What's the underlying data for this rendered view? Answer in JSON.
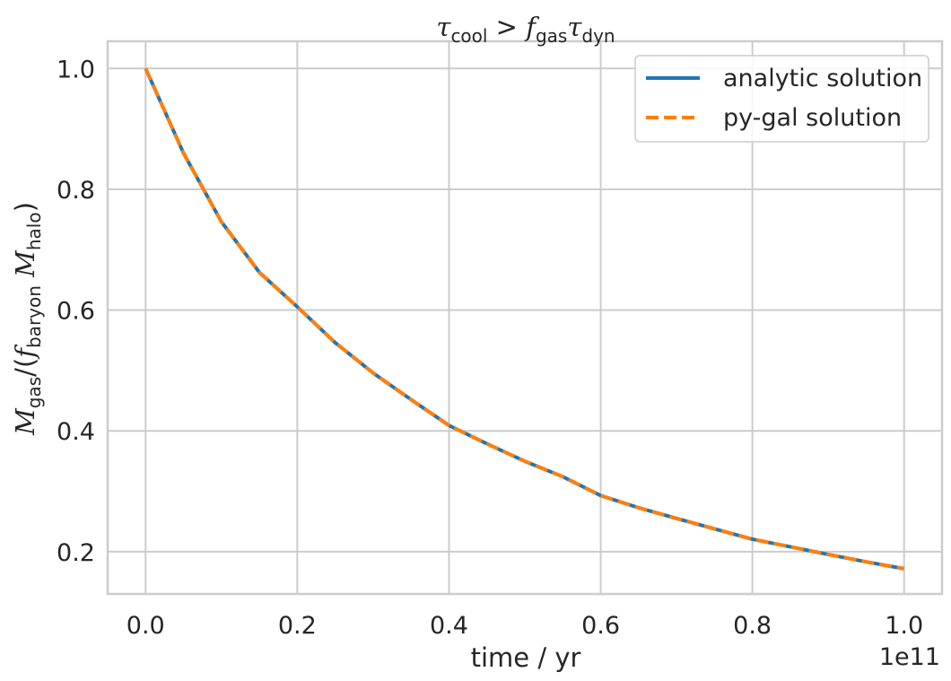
{
  "chart_data": {
    "type": "line",
    "title": "τcool > fgas τdyn",
    "xlabel": "time / yr",
    "ylabel": "Mgas/(fbaryon Mhalo)",
    "x_offset_label": "1e11",
    "xlim": [
      -0.05,
      1.05
    ],
    "ylim": [
      0.13,
      1.045
    ],
    "x_ticks": [
      0.0,
      0.2,
      0.4,
      0.6,
      0.8,
      1.0
    ],
    "x_tick_labels": [
      "0.0",
      "0.2",
      "0.4",
      "0.6",
      "0.8",
      "1.0"
    ],
    "y_ticks": [
      0.2,
      0.4,
      0.6,
      0.8,
      1.0
    ],
    "y_tick_labels": [
      "0.2",
      "0.4",
      "0.6",
      "0.8",
      "1.0"
    ],
    "grid": true,
    "legend_position": "top-right",
    "x": [
      0.0,
      0.05,
      0.1,
      0.15,
      0.2,
      0.25,
      0.3,
      0.35,
      0.4,
      0.45,
      0.5,
      0.55,
      0.6,
      0.65,
      0.7,
      0.75,
      0.8,
      0.85,
      0.9,
      0.95,
      1.0
    ],
    "series": [
      {
        "name": "analytic solution",
        "color": "#1f77b4",
        "style": "solid",
        "values": [
          1.0,
          0.8599,
          0.7461,
          0.6624,
          0.6053,
          0.5461,
          0.4959,
          0.4517,
          0.4089,
          0.3786,
          0.3497,
          0.3242,
          0.293,
          0.2727,
          0.2551,
          0.2379,
          0.2207,
          0.2081,
          0.1955,
          0.1832,
          0.1717
        ]
      },
      {
        "name": "py-gal solution",
        "color": "#ff7f0e",
        "style": "dashed",
        "values": [
          1.0,
          0.8599,
          0.7461,
          0.6624,
          0.6053,
          0.5461,
          0.4959,
          0.4517,
          0.4089,
          0.3786,
          0.3497,
          0.3242,
          0.293,
          0.2727,
          0.2551,
          0.2379,
          0.2207,
          0.2081,
          0.1955,
          0.1832,
          0.1717
        ]
      }
    ]
  }
}
